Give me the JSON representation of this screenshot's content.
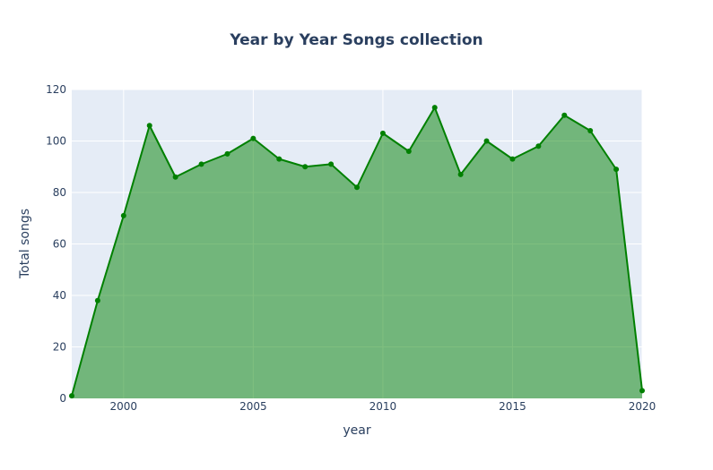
{
  "chart_data": {
    "type": "area",
    "title": "Year by Year Songs collection",
    "xlabel": "year",
    "ylabel": "Total songs",
    "xlim": [
      1998,
      2020
    ],
    "ylim": [
      0,
      120
    ],
    "x_ticks": [
      2000,
      2005,
      2010,
      2015,
      2020
    ],
    "y_ticks": [
      0,
      20,
      40,
      60,
      80,
      100,
      120
    ],
    "grid": true,
    "legend": "none",
    "colors": {
      "plot_bg": "#e5ecf6",
      "grid": "#ffffff",
      "line": "#008000",
      "fill": "#008000",
      "text": "#2a3f5f"
    },
    "x": [
      1998,
      1999,
      2000,
      2001,
      2002,
      2003,
      2004,
      2005,
      2006,
      2007,
      2008,
      2009,
      2010,
      2011,
      2012,
      2013,
      2014,
      2015,
      2016,
      2017,
      2018,
      2019,
      2020
    ],
    "values": [
      1,
      38,
      71,
      106,
      86,
      91,
      95,
      101,
      93,
      90,
      91,
      82,
      103,
      96,
      113,
      87,
      100,
      93,
      98,
      110,
      104,
      89,
      3
    ]
  }
}
